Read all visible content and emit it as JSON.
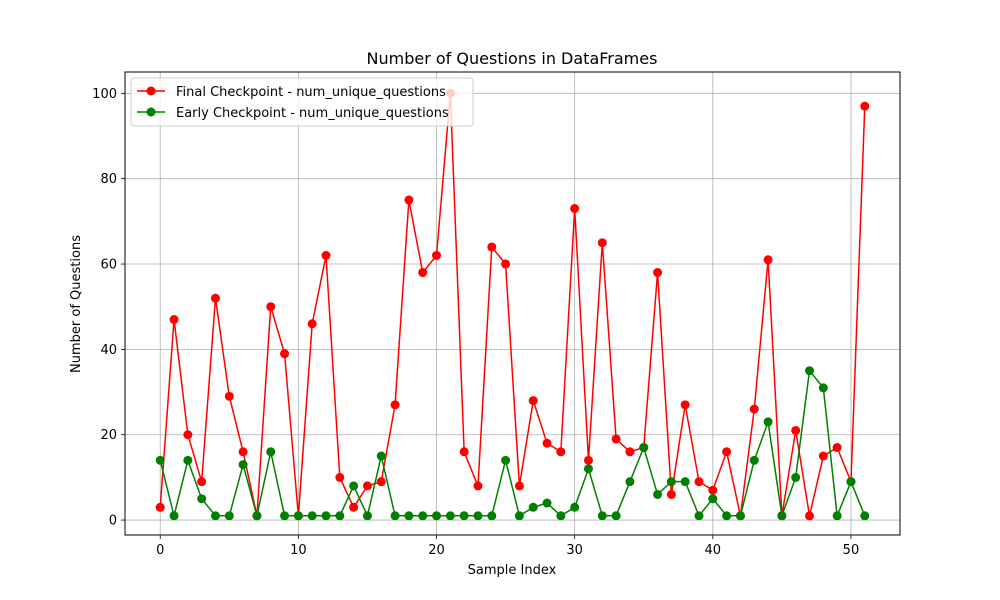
{
  "chart_data": {
    "type": "line",
    "title": "Number of Questions in DataFrames",
    "xlabel": "Sample Index",
    "ylabel": "Number of Questions",
    "xlim": [
      -2.55,
      53.55
    ],
    "ylim": [
      -3.5,
      105
    ],
    "x_ticks": [
      0,
      10,
      20,
      30,
      40,
      50
    ],
    "y_ticks": [
      0,
      20,
      40,
      60,
      80,
      100
    ],
    "grid": true,
    "legend_position": "top-left",
    "x": [
      0,
      1,
      2,
      3,
      4,
      5,
      6,
      7,
      8,
      9,
      10,
      11,
      12,
      13,
      14,
      15,
      16,
      17,
      18,
      19,
      20,
      21,
      22,
      23,
      24,
      25,
      26,
      27,
      28,
      29,
      30,
      31,
      32,
      33,
      34,
      35,
      36,
      37,
      38,
      39,
      40,
      41,
      42,
      43,
      44,
      45,
      46,
      47,
      48,
      49,
      50,
      51
    ],
    "series": [
      {
        "name": "Final Checkpoint - num_unique_questions",
        "color": "#ff0000",
        "marker": "circle",
        "values": [
          3,
          47,
          20,
          9,
          52,
          29,
          16,
          1,
          50,
          39,
          1,
          46,
          62,
          10,
          3,
          8,
          9,
          27,
          75,
          58,
          62,
          100,
          16,
          8,
          64,
          60,
          8,
          28,
          18,
          16,
          73,
          14,
          65,
          19,
          16,
          17,
          58,
          6,
          27,
          9,
          7,
          16,
          1,
          26,
          61,
          1,
          21,
          1,
          15,
          17,
          9,
          97
        ]
      },
      {
        "name": "Early Checkpoint - num_unique_questions",
        "color": "#008000",
        "marker": "circle",
        "values": [
          14,
          1,
          14,
          5,
          1,
          1,
          13,
          1,
          16,
          1,
          1,
          1,
          1,
          1,
          8,
          1,
          15,
          1,
          1,
          1,
          1,
          1,
          1,
          1,
          1,
          14,
          1,
          3,
          4,
          1,
          3,
          12,
          1,
          1,
          9,
          17,
          6,
          9,
          9,
          1,
          5,
          1,
          1,
          14,
          23,
          1,
          10,
          35,
          31,
          1,
          9,
          1
        ]
      }
    ]
  }
}
